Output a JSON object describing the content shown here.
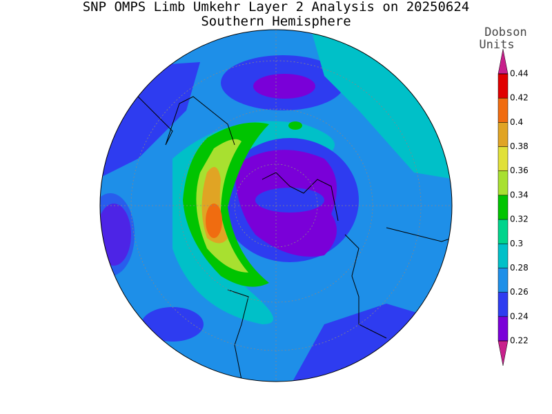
{
  "title": "SNP OMPS Limb Umkehr Layer 2 Analysis on 20250624",
  "subtitle": "Southern Hemisphere",
  "colorbar": {
    "label_lines": [
      "Dobson",
      "Units"
    ],
    "ticks": [
      0.22,
      0.24,
      0.26,
      0.28,
      0.3,
      0.32,
      0.34,
      0.36,
      0.38,
      0.4,
      0.42,
      0.44
    ],
    "colors": [
      "#c8208c",
      "#7a00d8",
      "#2e3cf0",
      "#1e8fe8",
      "#00c0c8",
      "#00d48c",
      "#00c400",
      "#a8e030",
      "#e0e038",
      "#e0a424",
      "#f06c10",
      "#e00000",
      "#c8208c"
    ]
  }
}
